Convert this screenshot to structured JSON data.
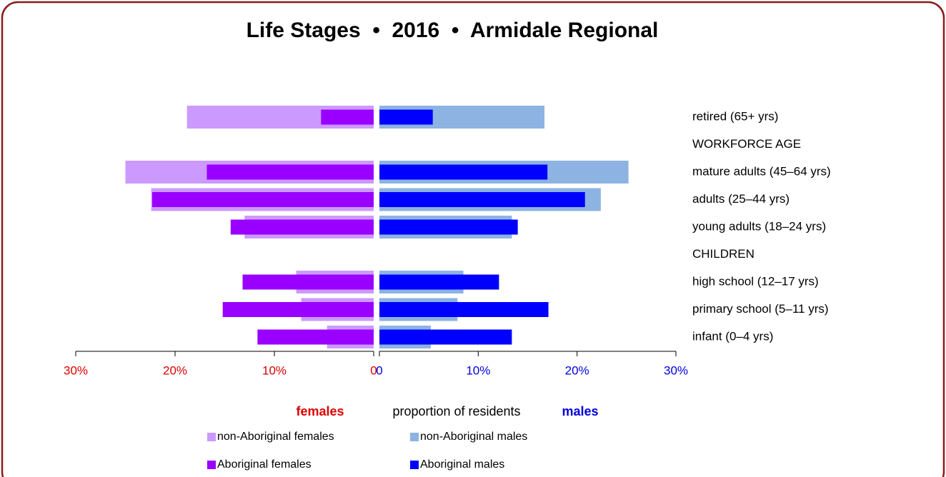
{
  "chart_data": {
    "type": "pyramid",
    "title": "Life Stages  •  2016  •  Armidale Regional",
    "categories": [
      "retired (65+ yrs)",
      "WORKFORCE AGE",
      "mature adults (45–64 yrs)",
      "adults (25–44 yrs)",
      "young adults (18–24 yrs)",
      "CHILDREN",
      "high school (12–17 yrs)",
      "primary school (5–11 yrs)",
      "infant (0–4 yrs)"
    ],
    "series": [
      {
        "name": "non-Aboriginal females",
        "side": "females",
        "color": "#cc99ff",
        "values": [
          18.8,
          null,
          25.0,
          22.4,
          13.0,
          null,
          7.8,
          7.3,
          4.7
        ]
      },
      {
        "name": "Aboriginal females",
        "side": "females",
        "color": "#9900ff",
        "values": [
          5.3,
          null,
          16.8,
          22.3,
          14.4,
          null,
          13.2,
          15.2,
          11.7
        ]
      },
      {
        "name": "non-Aboriginal males",
        "side": "males",
        "color": "#8db3e2",
        "values": [
          16.7,
          null,
          25.2,
          22.4,
          13.4,
          null,
          8.5,
          7.9,
          5.2
        ]
      },
      {
        "name": "Aboriginal males",
        "side": "males",
        "color": "#0000ff",
        "values": [
          5.4,
          null,
          17.0,
          20.8,
          14.0,
          null,
          12.1,
          17.1,
          13.4
        ]
      }
    ],
    "xlim": [
      0,
      30
    ],
    "xticks_females": [
      {
        "value": 30,
        "label": "30%"
      },
      {
        "value": 20,
        "label": "20%"
      },
      {
        "value": 10,
        "label": "10%"
      },
      0
    ],
    "xticks_males": [
      0,
      {
        "value": 10,
        "label": "10%"
      },
      {
        "value": 20,
        "label": "20%"
      },
      {
        "value": 30,
        "label": "30%"
      }
    ],
    "females_label": "females",
    "x_label": "proportion of residents",
    "males_label": "males"
  }
}
